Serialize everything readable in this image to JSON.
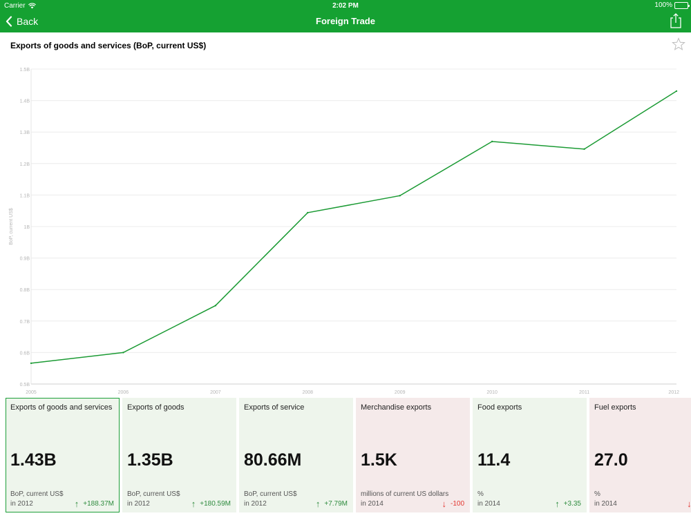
{
  "status_bar": {
    "carrier": "Carrier",
    "time": "2:02 PM",
    "battery": "100%"
  },
  "nav": {
    "back_label": "Back",
    "title": "Foreign Trade"
  },
  "chart_title": "Exports of goods and services (BoP, current US$)",
  "colors": {
    "brand": "#15a132",
    "line": "#1a9a33",
    "up_bg": "#eef5ec",
    "down_bg": "#f5eaea",
    "up_text": "#2e8b3e",
    "down_text": "#e3352f"
  },
  "chart_data": {
    "type": "line",
    "title": "Exports of goods and services (BoP, current US$)",
    "xlabel": "",
    "ylabel": "BoP, current US$",
    "x": [
      2005,
      2006,
      2007,
      2008,
      2009,
      2010,
      2011,
      2012
    ],
    "series": [
      {
        "values": [
          0.566,
          0.6,
          0.749,
          1.044,
          1.098,
          1.27,
          1.246,
          1.43
        ]
      }
    ],
    "ylim": [
      0.5,
      1.5
    ],
    "yticks": [
      0.5,
      0.6,
      0.7,
      0.8,
      0.9,
      1.0,
      1.1,
      1.2,
      1.3,
      1.4,
      1.5
    ],
    "ytick_labels": [
      "0.5B",
      "0.6B",
      "0.7B",
      "0.8B",
      "0.9B",
      "1B",
      "1.1B",
      "1.2B",
      "1.3B",
      "1.4B",
      "1.5B"
    ],
    "xtick_labels": [
      "2005",
      "2006",
      "2007",
      "2008",
      "2009",
      "2010",
      "2011",
      "2012"
    ],
    "grid": true,
    "legend": "none"
  },
  "cards": [
    {
      "title": "Exports of goods and services",
      "value": "1.43B",
      "unit": "BoP, current US$",
      "period": "in 2012",
      "change": "+188.37M",
      "trend": "up",
      "selected": true
    },
    {
      "title": "Exports of goods",
      "value": "1.35B",
      "unit": "BoP, current US$",
      "period": "in 2012",
      "change": "+180.59M",
      "trend": "up",
      "selected": false
    },
    {
      "title": "Exports of service",
      "value": "80.66M",
      "unit": "BoP, current US$",
      "period": "in 2012",
      "change": "+7.79M",
      "trend": "up",
      "selected": false
    },
    {
      "title": "Merchandise exports",
      "value": "1.5K",
      "unit": "millions of current US dollars",
      "period": "in 2014",
      "change": "-100",
      "trend": "down",
      "selected": false
    },
    {
      "title": "Food exports",
      "value": "11.4",
      "unit": "%",
      "period": "in 2014",
      "change": "+3.35",
      "trend": "up",
      "selected": false
    },
    {
      "title": "Fuel exports",
      "value": "27.0",
      "unit": "%",
      "period": "in 2014",
      "change": "-",
      "trend": "down",
      "selected": false
    }
  ]
}
